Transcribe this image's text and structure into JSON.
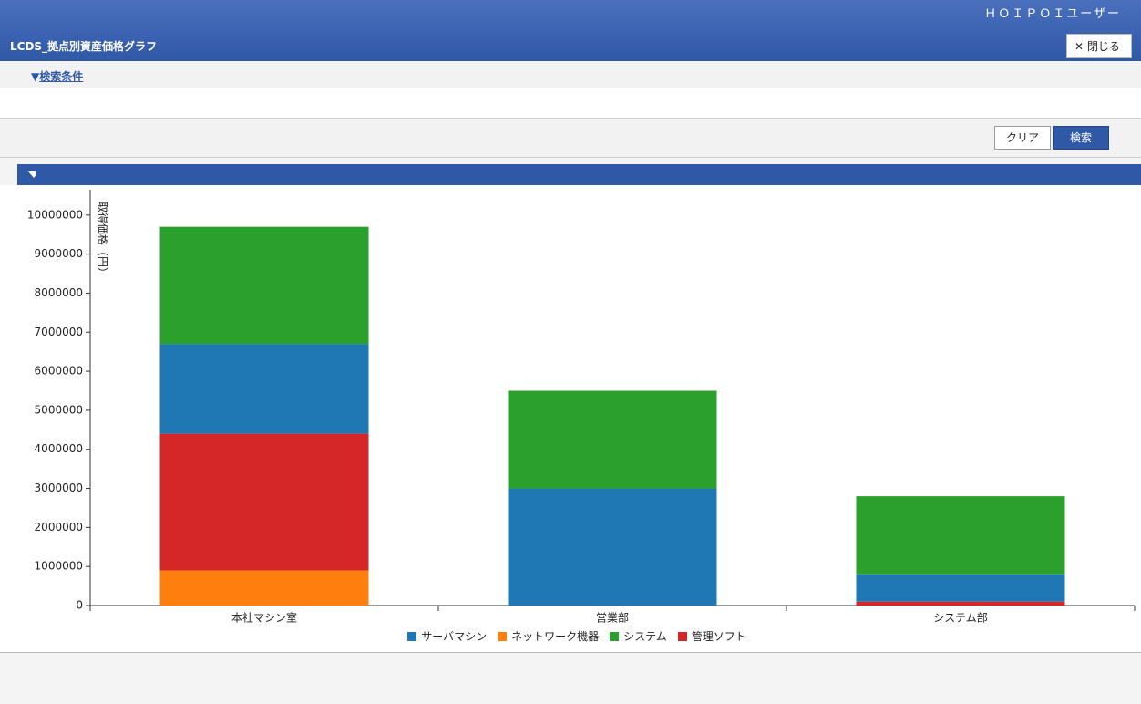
{
  "header": {
    "user": "ＨＯＩＰＯＩユーザー",
    "title": "LCDS_拠点別資産価格グラフ",
    "close": "閉じる"
  },
  "search": {
    "toggle": "検索条件"
  },
  "buttons": {
    "clear": "クリア",
    "search": "検索"
  },
  "chart_data": {
    "type": "stacked_bar",
    "y_label": "取得価格（円）",
    "categories": [
      "本社マシン室",
      "営業部",
      "システム部"
    ],
    "series": [
      {
        "name": "ネットワーク機器",
        "color": "#ff7f0e",
        "values": [
          900000,
          0,
          0
        ]
      },
      {
        "name": "管理ソフト",
        "color": "#d62728",
        "values": [
          3500000,
          0,
          100000
        ]
      },
      {
        "name": "サーバマシン",
        "color": "#1f77b4",
        "values": [
          2300000,
          3000000,
          700000
        ]
      },
      {
        "name": "システム",
        "color": "#2ca02c",
        "values": [
          3000000,
          2500000,
          2000000
        ]
      }
    ],
    "legend_order": [
      2,
      0,
      3,
      1
    ],
    "ylim": [
      0,
      10650000
    ],
    "yticks": [
      0,
      1000000,
      2000000,
      3000000,
      4000000,
      5000000,
      6000000,
      7000000,
      8000000,
      9000000,
      10000000
    ]
  }
}
